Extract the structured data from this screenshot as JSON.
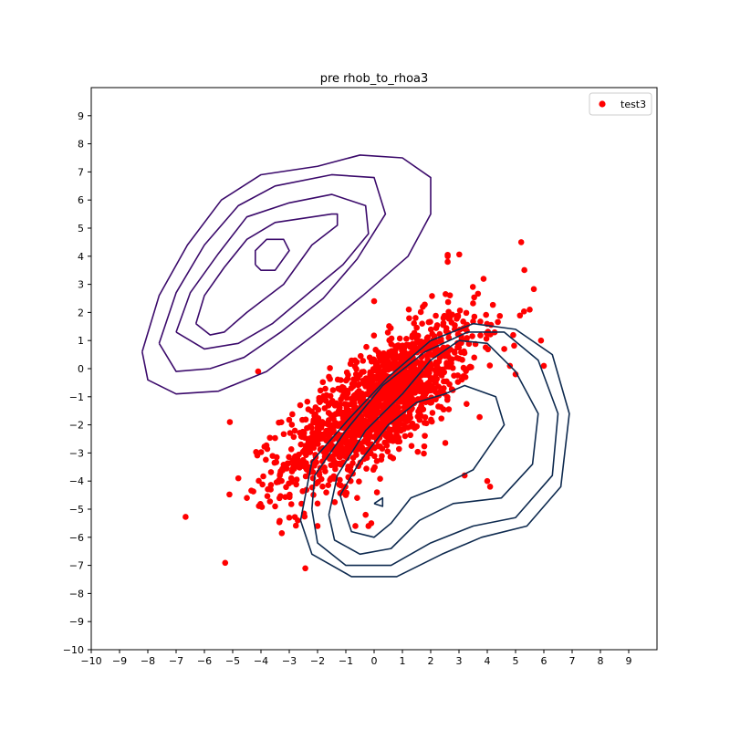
{
  "chart_data": {
    "type": "scatter",
    "title": "pre rhob_to_rhoa3",
    "xlabel": "",
    "ylabel": "",
    "xlim": [
      -10,
      10
    ],
    "ylim": [
      -10,
      10
    ],
    "xticks": [
      -10,
      -9,
      -8,
      -7,
      -6,
      -5,
      -4,
      -3,
      -2,
      -1,
      0,
      1,
      2,
      3,
      4,
      5,
      6,
      7,
      8,
      9
    ],
    "yticks": [
      -10,
      -9,
      -8,
      -7,
      -6,
      -5,
      -4,
      -3,
      -2,
      -1,
      0,
      1,
      2,
      3,
      4,
      5,
      6,
      7,
      8,
      9
    ],
    "grid": false,
    "legend": {
      "placement": "upper-right",
      "entries": [
        {
          "label": "test3",
          "color": "#ff0000"
        }
      ]
    },
    "series": [
      {
        "name": "test3",
        "kind": "scatter",
        "color": "#ff0000",
        "distribution": {
          "mean": [
            0.2,
            -1.2
          ],
          "std": [
            1.7,
            1.5
          ],
          "correlation": 0.75,
          "count": 1500
        },
        "outliers": [
          [
            5.2,
            4.5
          ],
          [
            -5.1,
            -1.9
          ],
          [
            -4.8,
            -3.9
          ],
          [
            -4.1,
            -0.1
          ],
          [
            2.6,
            4.0
          ],
          [
            2.6,
            3.8
          ],
          [
            2.6,
            4.05
          ],
          [
            5.9,
            1.0
          ],
          [
            5.5,
            2.1
          ],
          [
            6.0,
            0.1
          ],
          [
            3.2,
            -3.8
          ],
          [
            4.1,
            -4.2
          ],
          [
            4.0,
            -4.0
          ],
          [
            -0.2,
            -5.6
          ],
          [
            -0.1,
            -5.5
          ],
          [
            -0.3,
            -5.2
          ],
          [
            -2.0,
            -5.6
          ],
          [
            -2.7,
            -5.4
          ],
          [
            -3.0,
            -5.3
          ],
          [
            0.1,
            -4.4
          ],
          [
            -1.0,
            -4.5
          ],
          [
            -0.6,
            -4.6
          ],
          [
            4.6,
            0.7
          ],
          [
            5.0,
            -0.2
          ],
          [
            4.8,
            0.1
          ],
          [
            0.0,
            2.4
          ],
          [
            -2.0,
            -4.8
          ],
          [
            -3.5,
            -4.9
          ]
        ]
      }
    ],
    "contours": [
      {
        "group": "upper-left",
        "color": "#3b0a6b",
        "levels": [
          [
            [
              -4.2,
              3.7
            ],
            [
              -4.2,
              4.2
            ],
            [
              -3.8,
              4.6
            ],
            [
              -3.2,
              4.6
            ],
            [
              -3.0,
              4.2
            ],
            [
              -3.5,
              3.5
            ],
            [
              -4.0,
              3.5
            ],
            [
              -4.2,
              3.7
            ]
          ],
          [
            [
              -6.3,
              1.6
            ],
            [
              -6.0,
              2.6
            ],
            [
              -5.3,
              3.6
            ],
            [
              -4.5,
              4.6
            ],
            [
              -3.5,
              5.2
            ],
            [
              -1.5,
              5.5
            ],
            [
              -1.3,
              5.5
            ],
            [
              -1.3,
              5.1
            ],
            [
              -2.2,
              4.4
            ],
            [
              -3.2,
              3.0
            ],
            [
              -4.5,
              2.0
            ],
            [
              -5.3,
              1.3
            ],
            [
              -5.8,
              1.2
            ],
            [
              -6.3,
              1.6
            ]
          ],
          [
            [
              -7.0,
              1.3
            ],
            [
              -6.5,
              2.7
            ],
            [
              -5.5,
              4.1
            ],
            [
              -4.5,
              5.4
            ],
            [
              -3.0,
              5.9
            ],
            [
              -1.5,
              6.2
            ],
            [
              -0.3,
              5.8
            ],
            [
              -0.2,
              4.8
            ],
            [
              -1.1,
              3.7
            ],
            [
              -2.3,
              2.7
            ],
            [
              -3.6,
              1.6
            ],
            [
              -4.8,
              0.9
            ],
            [
              -6.0,
              0.7
            ],
            [
              -7.0,
              1.3
            ]
          ],
          [
            [
              -7.6,
              0.9
            ],
            [
              -7.0,
              2.7
            ],
            [
              -6.0,
              4.4
            ],
            [
              -4.8,
              5.8
            ],
            [
              -3.5,
              6.5
            ],
            [
              -1.5,
              6.9
            ],
            [
              0.0,
              6.8
            ],
            [
              0.4,
              5.5
            ],
            [
              -0.6,
              3.9
            ],
            [
              -1.8,
              2.5
            ],
            [
              -3.3,
              1.3
            ],
            [
              -4.6,
              0.4
            ],
            [
              -5.8,
              0.0
            ],
            [
              -7.0,
              -0.1
            ],
            [
              -7.6,
              0.9
            ]
          ],
          [
            [
              -8.2,
              0.6
            ],
            [
              -7.6,
              2.6
            ],
            [
              -6.6,
              4.4
            ],
            [
              -5.4,
              6.0
            ],
            [
              -4.0,
              6.9
            ],
            [
              -2.0,
              7.2
            ],
            [
              -0.5,
              7.6
            ],
            [
              1.0,
              7.5
            ],
            [
              2.0,
              6.8
            ],
            [
              2.0,
              5.5
            ],
            [
              1.2,
              4.0
            ],
            [
              -0.4,
              2.6
            ],
            [
              -2.0,
              1.3
            ],
            [
              -3.8,
              -0.1
            ],
            [
              -5.5,
              -0.8
            ],
            [
              -7.0,
              -0.9
            ],
            [
              -8.0,
              -0.4
            ],
            [
              -8.2,
              0.6
            ]
          ]
        ]
      },
      {
        "group": "lower-right",
        "color": "#0e2a4f",
        "levels": [
          [
            [
              0.0,
              -4.8
            ],
            [
              0.3,
              -4.6
            ],
            [
              0.3,
              -4.9
            ],
            [
              0.0,
              -4.8
            ]
          ],
          [
            [
              -1.0,
              -5.2
            ],
            [
              -0.8,
              -5.8
            ],
            [
              0.0,
              -6.0
            ],
            [
              0.6,
              -5.5
            ],
            [
              1.3,
              -4.6
            ],
            [
              2.3,
              -4.2
            ],
            [
              3.5,
              -3.6
            ],
            [
              4.6,
              -2.0
            ],
            [
              4.3,
              -1.0
            ],
            [
              3.2,
              -0.6
            ],
            [
              2.5,
              -0.9
            ],
            [
              1.5,
              -1.2
            ],
            [
              0.5,
              -2.0
            ],
            [
              -0.5,
              -3.3
            ],
            [
              -1.2,
              -4.5
            ],
            [
              -1.0,
              -5.2
            ]
          ],
          [
            [
              -1.6,
              -5.2
            ],
            [
              -1.4,
              -6.1
            ],
            [
              -0.5,
              -6.6
            ],
            [
              0.6,
              -6.4
            ],
            [
              1.6,
              -5.4
            ],
            [
              2.8,
              -4.8
            ],
            [
              4.5,
              -4.6
            ],
            [
              5.6,
              -3.4
            ],
            [
              5.8,
              -1.6
            ],
            [
              5.0,
              -0.1
            ],
            [
              4.0,
              0.9
            ],
            [
              3.0,
              1.0
            ],
            [
              2.0,
              0.3
            ],
            [
              1.0,
              -0.9
            ],
            [
              -0.3,
              -2.2
            ],
            [
              -1.3,
              -3.8
            ],
            [
              -1.6,
              -5.2
            ]
          ],
          [
            [
              -2.2,
              -5.0
            ],
            [
              -2.0,
              -6.2
            ],
            [
              -1.0,
              -7.0
            ],
            [
              0.6,
              -7.0
            ],
            [
              2.0,
              -6.2
            ],
            [
              3.5,
              -5.6
            ],
            [
              5.0,
              -5.3
            ],
            [
              6.3,
              -3.8
            ],
            [
              6.5,
              -1.6
            ],
            [
              5.8,
              0.3
            ],
            [
              4.6,
              1.3
            ],
            [
              3.3,
              1.3
            ],
            [
              1.8,
              0.6
            ],
            [
              0.3,
              -0.6
            ],
            [
              -1.0,
              -2.2
            ],
            [
              -2.1,
              -3.8
            ],
            [
              -2.2,
              -5.0
            ]
          ],
          [
            [
              -2.6,
              -5.4
            ],
            [
              -2.2,
              -6.6
            ],
            [
              -0.8,
              -7.4
            ],
            [
              0.8,
              -7.4
            ],
            [
              2.4,
              -6.6
            ],
            [
              3.8,
              -6.0
            ],
            [
              5.4,
              -5.6
            ],
            [
              6.6,
              -4.2
            ],
            [
              6.9,
              -1.6
            ],
            [
              6.3,
              0.5
            ],
            [
              5.0,
              1.4
            ],
            [
              3.5,
              1.6
            ],
            [
              2.0,
              1.0
            ],
            [
              0.5,
              -0.3
            ],
            [
              -0.9,
              -1.8
            ],
            [
              -2.2,
              -3.3
            ],
            [
              -2.6,
              -5.4
            ]
          ]
        ]
      }
    ]
  }
}
